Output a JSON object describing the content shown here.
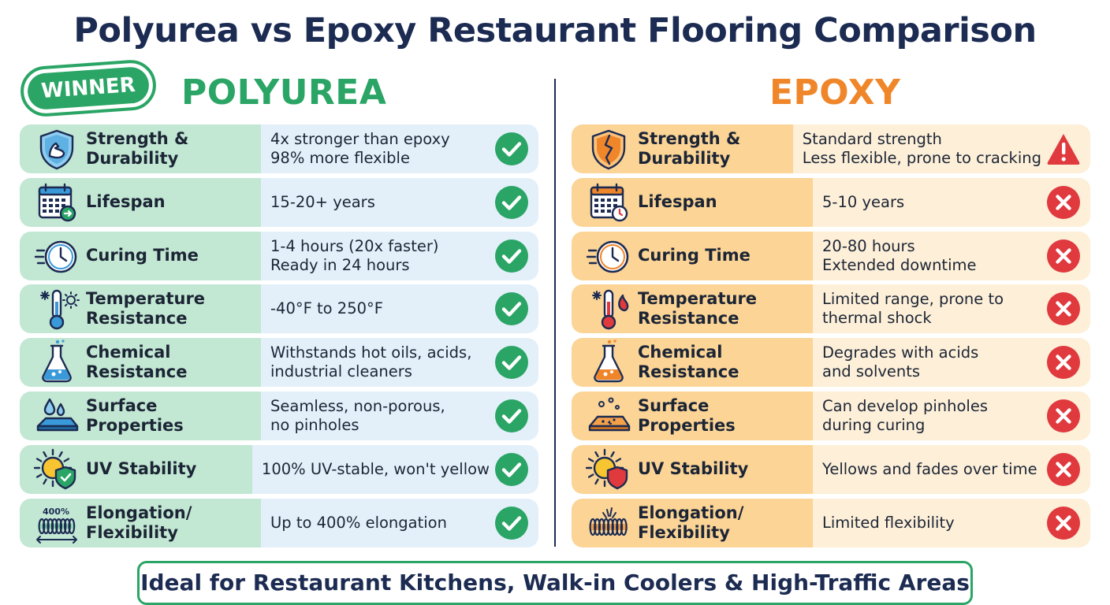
{
  "title": "Polyurea vs Epoxy Restaurant Flooring Comparison",
  "badge": "WINNER",
  "left": {
    "heading": "POLYUREA",
    "accent": "#2aa565",
    "rows": [
      {
        "label": [
          "Strength &",
          "Durability"
        ],
        "value": [
          "4x stronger than epoxy",
          "98% more flexible"
        ],
        "icon": "shield-muscle-icon",
        "status": "check-icon"
      },
      {
        "label": [
          "Lifespan"
        ],
        "value": [
          "15-20+ years"
        ],
        "icon": "calendar-icon",
        "status": "check-icon"
      },
      {
        "label": [
          "Curing Time"
        ],
        "value": [
          "1-4 hours (20x faster)",
          "Ready in 24 hours"
        ],
        "icon": "fast-clock-icon",
        "status": "check-icon"
      },
      {
        "label": [
          "Temperature",
          "Resistance"
        ],
        "value": [
          "-40°F to 250°F"
        ],
        "icon": "thermometer-icon",
        "status": "check-icon"
      },
      {
        "label": [
          "Chemical",
          "Resistance"
        ],
        "value": [
          "Withstands hot oils, acids,",
          "industrial cleaners"
        ],
        "icon": "flask-icon",
        "status": "check-icon"
      },
      {
        "label": [
          "Surface",
          "Properties"
        ],
        "value": [
          "Seamless, non-porous,",
          "no pinholes"
        ],
        "icon": "droplets-surface-icon",
        "status": "check-icon"
      },
      {
        "label": [
          "UV Stability"
        ],
        "value": [
          "100% UV-stable, won't yellow"
        ],
        "icon": "sun-shield-icon",
        "status": "check-icon"
      },
      {
        "label": [
          "Elongation/",
          "Flexibility"
        ],
        "value": [
          "Up to 400% elongation"
        ],
        "icon": "spring-stretch-icon",
        "icon_text": "400%",
        "status": "check-icon"
      }
    ]
  },
  "right": {
    "heading": "EPOXY",
    "accent": "#f0862a",
    "rows": [
      {
        "label": [
          "Strength &",
          "Durability"
        ],
        "value": [
          "Standard strength",
          "Less flexible, prone to cracking"
        ],
        "icon": "cracked-shield-icon",
        "status": "warning-icon"
      },
      {
        "label": [
          "Lifespan"
        ],
        "value": [
          "5-10 years"
        ],
        "icon": "calendar-clock-icon",
        "status": "x-icon"
      },
      {
        "label": [
          "Curing Time"
        ],
        "value": [
          "20-80 hours",
          "Extended downtime"
        ],
        "icon": "slow-clock-icon",
        "status": "x-icon"
      },
      {
        "label": [
          "Temperature",
          "Resistance"
        ],
        "value": [
          "Limited range, prone to",
          "thermal shock"
        ],
        "icon": "thermometer-flame-icon",
        "status": "x-icon"
      },
      {
        "label": [
          "Chemical",
          "Resistance"
        ],
        "value": [
          "Degrades with acids",
          "and solvents"
        ],
        "icon": "flask-icon",
        "status": "x-icon"
      },
      {
        "label": [
          "Surface",
          "Properties"
        ],
        "value": [
          "Can develop pinholes",
          "during curing"
        ],
        "icon": "pinhole-surface-icon",
        "status": "x-icon"
      },
      {
        "label": [
          "UV Stability"
        ],
        "value": [
          "Yellows and fades over time"
        ],
        "icon": "sun-shield-icon",
        "status": "x-icon"
      },
      {
        "label": [
          "Elongation/",
          "Flexibility"
        ],
        "value": [
          "Limited flexibility"
        ],
        "icon": "broken-spring-icon",
        "status": "x-icon"
      }
    ]
  },
  "footer": "Ideal for Restaurant Kitchens, Walk-in Coolers & High-Traffic Areas",
  "colors": {
    "navy": "#1c2b52",
    "green": "#2aa565",
    "orange": "#f0862a",
    "red": "#e0393e"
  }
}
